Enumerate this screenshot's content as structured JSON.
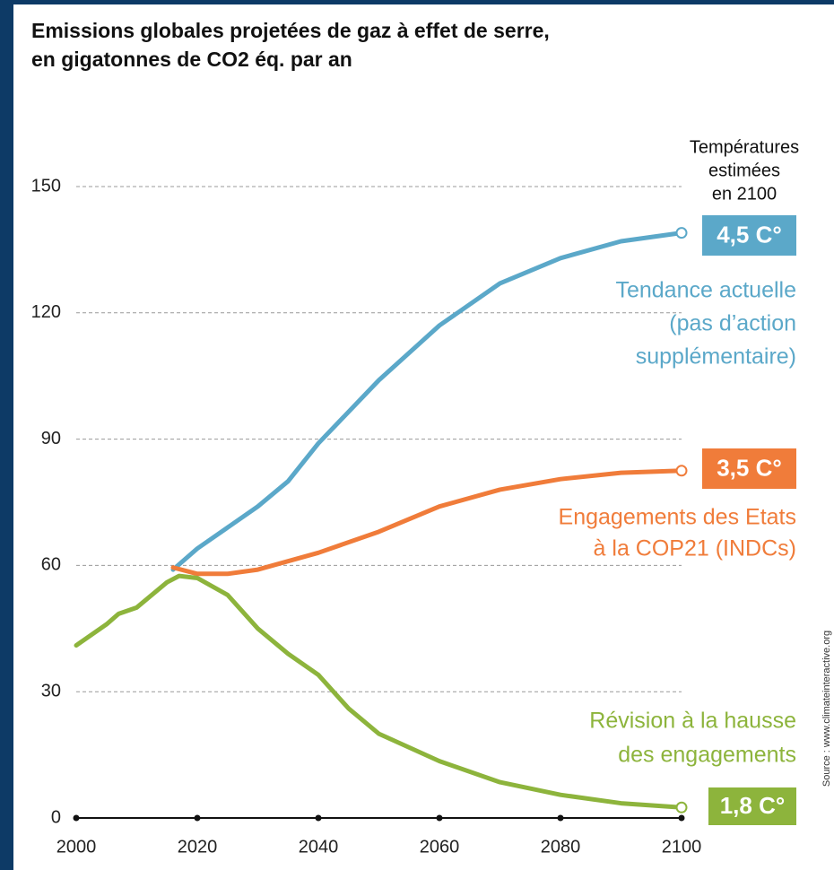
{
  "chart_data": {
    "type": "line",
    "title": [
      "Emissions globales projetées de gaz à effet de serre,",
      "en gigatonnes de CO2 éq. par an"
    ],
    "annotation": [
      "Températures",
      "estimées",
      "en 2100"
    ],
    "source": "Source : www.climateinteractive.org",
    "xlim": [
      2000,
      2100
    ],
    "xticks": [
      2000,
      2020,
      2040,
      2060,
      2080,
      2100
    ],
    "ylim": [
      0,
      150
    ],
    "yticks": [
      0,
      30,
      60,
      90,
      120,
      150
    ],
    "grid": true,
    "series": [
      {
        "label": [
          "Tendance actuelle",
          "(pas d’action",
          "supplémentaire)"
        ],
        "end_label": "4,5 C°",
        "color": "#5ba8c9",
        "x": [
          2016,
          2020,
          2030,
          2035,
          2040,
          2050,
          2060,
          2070,
          2080,
          2090,
          2100
        ],
        "values": [
          59,
          64,
          74,
          80,
          89,
          104,
          117,
          127,
          133,
          137,
          139
        ]
      },
      {
        "label": [
          "Engagements des Etats",
          "à la COP21 (INDCs)"
        ],
        "end_label": "3,5 C°",
        "color": "#f07c3a",
        "x": [
          2016,
          2020,
          2025,
          2030,
          2040,
          2050,
          2060,
          2070,
          2080,
          2090,
          2100
        ],
        "values": [
          59.5,
          58,
          58,
          59,
          63,
          68,
          74,
          78,
          80.5,
          82,
          82.5
        ]
      },
      {
        "label": [
          "Révision à la hausse",
          "des engagements"
        ],
        "end_label": "1,8 C°",
        "color": "#8db43c",
        "x": [
          2000,
          2005,
          2007,
          2010,
          2015,
          2017,
          2020,
          2025,
          2030,
          2035,
          2040,
          2045,
          2050,
          2060,
          2070,
          2080,
          2090,
          2100
        ],
        "values": [
          41,
          46,
          48.5,
          50,
          56,
          57.5,
          57,
          53,
          45,
          39,
          34,
          26,
          20,
          13.5,
          8.5,
          5.5,
          3.5,
          2.5
        ]
      }
    ]
  }
}
